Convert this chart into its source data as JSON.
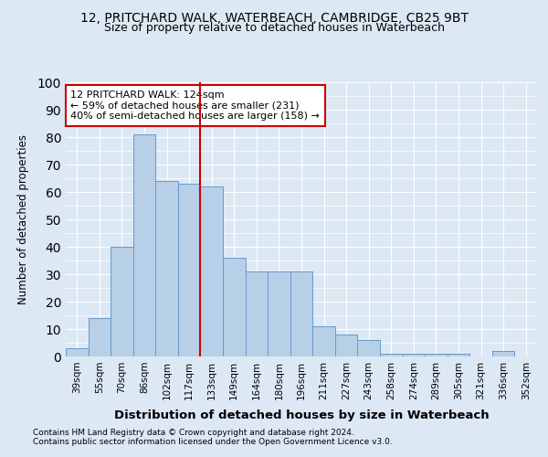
{
  "title1": "12, PRITCHARD WALK, WATERBEACH, CAMBRIDGE, CB25 9BT",
  "title2": "Size of property relative to detached houses in Waterbeach",
  "xlabel": "Distribution of detached houses by size in Waterbeach",
  "ylabel": "Number of detached properties",
  "categories": [
    "39sqm",
    "55sqm",
    "70sqm",
    "86sqm",
    "102sqm",
    "117sqm",
    "133sqm",
    "149sqm",
    "164sqm",
    "180sqm",
    "196sqm",
    "211sqm",
    "227sqm",
    "243sqm",
    "258sqm",
    "274sqm",
    "289sqm",
    "305sqm",
    "321sqm",
    "336sqm",
    "352sqm"
  ],
  "values": [
    3,
    14,
    40,
    81,
    64,
    63,
    62,
    36,
    31,
    31,
    31,
    11,
    8,
    6,
    1,
    1,
    1,
    1,
    0,
    2,
    0
  ],
  "bar_color": "#b8cfe8",
  "bar_edge_color": "#6699cc",
  "vline_x": 5.5,
  "vline_color": "#cc0000",
  "annotation_text": "12 PRITCHARD WALK: 124sqm\n← 59% of detached houses are smaller (231)\n40% of semi-detached houses are larger (158) →",
  "annotation_box_color": "#ffffff",
  "annotation_box_edge_color": "#cc0000",
  "ylim": [
    0,
    100
  ],
  "background_color": "#dde8f5",
  "grid_color": "#ffffff",
  "footer1": "Contains HM Land Registry data © Crown copyright and database right 2024.",
  "footer2": "Contains public sector information licensed under the Open Government Licence v3.0."
}
